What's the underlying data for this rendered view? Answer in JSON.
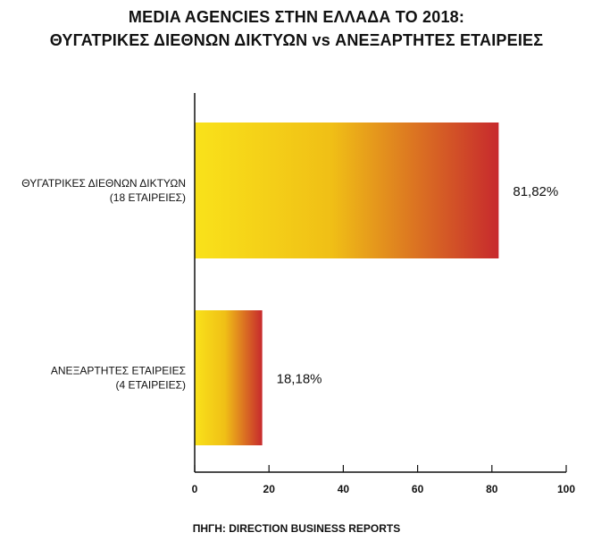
{
  "title_line1": "MEDIA AGENCIES ΣΤΗΝ ΕΛΛΑΔΑ ΤΟ 2018:",
  "title_line2": "ΘΥΓΑΤΡΙΚΕΣ ΔΙΕΘΝΩΝ ΔΙΚΤΥΩΝ vs ΑΝΕΞΑΡΤΗΤΕΣ ΕΤΑΙΡΕΙΕΣ",
  "source": "ΠΗΓΗ: DIRECTION BUSINESS REPORTS",
  "colors": {
    "bar_start": "#f9e21a",
    "bar_end": "#c7292d",
    "axis": "#111111"
  },
  "chart_data": {
    "type": "bar",
    "orientation": "horizontal",
    "categories": [
      {
        "line1": "ΘΥΓΑΤΡΙΚΕΣ ΔΙΕΘΝΩΝ ΔΙΚΤΥΩΝ",
        "line2": "(18 ΕΤΑΙΡΕΙΕΣ)"
      },
      {
        "line1": "ΑΝΕΞΑΡΤΗΤΕΣ ΕΤΑΙΡΕΙΕΣ",
        "line2": "(4 ΕΤΑΙΡΕΙΕΣ)"
      }
    ],
    "values": [
      81.82,
      18.18
    ],
    "data_labels": [
      "81,82%",
      "18,18%"
    ],
    "xlim": [
      0,
      100
    ],
    "xticks": [
      0,
      20,
      40,
      60,
      80,
      100
    ],
    "grid": false
  }
}
